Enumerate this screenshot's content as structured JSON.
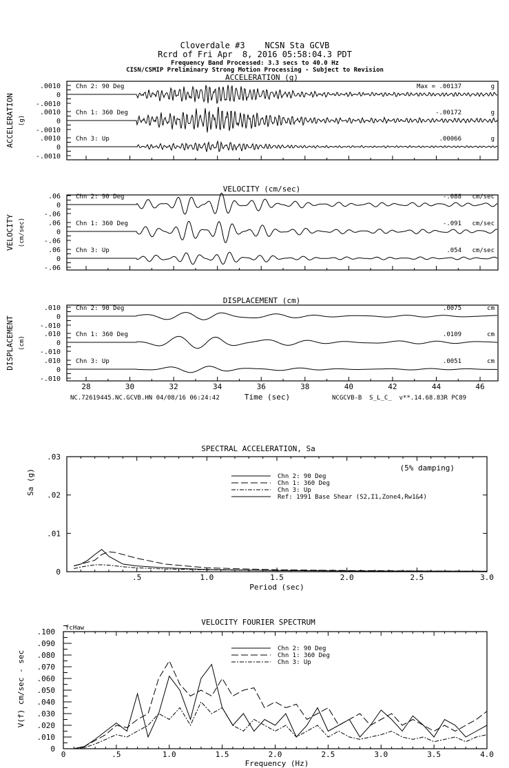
{
  "header": {
    "line1": "Cloverdale #3    NCSN Sta GCVB",
    "line2": "Rcrd of Fri Apr  8, 2016 05:58:04.3 PDT",
    "line3": "Frequency Band Processed: 3.3 secs to 40.0 Hz",
    "line4": "CISN/CSMIP Preliminary Strong Motion Processing - Subject to Revision"
  },
  "footer": {
    "left": "NC.72619445.NC.GCVB.HN 04/08/16 06:24:42",
    "right": "NCGCVB-B  S_L_C_  v**.14.68.83R PC89"
  },
  "chart_data": [
    {
      "type": "line",
      "title": "ACCELERATION (g)",
      "ylabel": "ACCELERATION",
      "yunit": "(g)",
      "xlabel": "Time (sec)",
      "xlim": [
        27.1,
        46.8
      ],
      "xticks": [
        "28",
        "30",
        "32",
        "34",
        "36",
        "38",
        "40",
        "42",
        "44",
        "46"
      ],
      "ytick_top": ".0010",
      "ytick_mid": "0",
      "ytick_bot": "-.0010",
      "ylim": [
        -0.001,
        0.001
      ],
      "series": [
        {
          "name": "Chn 2: 90 Deg",
          "peak_label": "Max = .00137",
          "unit": "g",
          "peak": 0.00137
        },
        {
          "name": "Chn 1: 360 Deg",
          "peak_label": "-.00172",
          "unit": "g",
          "peak": 0.00172
        },
        {
          "name": "Chn 3: Up",
          "peak_label": ".00066",
          "unit": "g",
          "peak": 0.00066
        }
      ],
      "onset_sec": 30.3,
      "peak_sec": 34.2,
      "freq_hz": 5
    },
    {
      "type": "line",
      "title": "VELOCITY (cm/sec)",
      "ylabel": "VELOCITY",
      "yunit": "(cm/sec)",
      "ytick_top": ".06",
      "ytick_mid": "0",
      "ytick_bot": "-.06",
      "ylim": [
        -0.06,
        0.06
      ],
      "series": [
        {
          "name": "Chn 2: 90 Deg",
          "peak_label": "-.088",
          "unit": "cm/sec",
          "peak": 0.088
        },
        {
          "name": "Chn 1: 360 Deg",
          "peak_label": "-.091",
          "unit": "cm/sec",
          "peak": 0.091
        },
        {
          "name": "Chn 3: Up",
          "peak_label": ".054",
          "unit": "cm/sec",
          "peak": 0.054
        }
      ],
      "onset_sec": 30.3,
      "peak_sec": 33.8,
      "freq_hz": 1.5
    },
    {
      "type": "line",
      "title": "DISPLACEMENT (cm)",
      "ylabel": "DISPLACEMENT",
      "yunit": "(cm)",
      "ytick_top": ".010",
      "ytick_mid": "0",
      "ytick_bot": "-.010",
      "ylim": [
        -0.01,
        0.01
      ],
      "series": [
        {
          "name": "Chn 2: 90 Deg",
          "peak_label": ".0075",
          "unit": "cm",
          "peak": 0.0075
        },
        {
          "name": "Chn 1: 360 Deg",
          "peak_label": ".0109",
          "unit": "cm",
          "peak": 0.0109
        },
        {
          "name": "Chn 3: Up",
          "peak_label": ".0051",
          "unit": "cm",
          "peak": 0.0051
        }
      ],
      "onset_sec": 30.3,
      "peak_sec": 34.0,
      "freq_hz": 0.5
    },
    {
      "type": "line",
      "title": "SPECTRAL ACCELERATION, Sa",
      "xlabel": "Period (sec)",
      "ylabel": "Sa (g)",
      "note": "(5% damping)",
      "xlim": [
        0,
        3.0
      ],
      "ylim": [
        0,
        0.03
      ],
      "xticks": [
        ".5",
        "1.0",
        "1.5",
        "2.0",
        "2.5",
        "3.0"
      ],
      "yticks": [
        "0",
        ".01",
        ".02",
        ".03"
      ],
      "x": [
        0.05,
        0.1,
        0.15,
        0.2,
        0.25,
        0.3,
        0.35,
        0.4,
        0.5,
        0.7,
        1.0,
        1.5,
        2.0,
        3.0
      ],
      "series": [
        {
          "name": "Chn 2: 90 Deg",
          "dash": "",
          "values": [
            0.0015,
            0.002,
            0.003,
            0.0045,
            0.0058,
            0.004,
            0.003,
            0.002,
            0.0015,
            0.001,
            0.0006,
            0.0003,
            0.0002,
            0.0001
          ]
        },
        {
          "name": "Chn 1: 360 Deg",
          "dash": "10,4",
          "values": [
            0.0015,
            0.002,
            0.0025,
            0.003,
            0.0045,
            0.0052,
            0.005,
            0.0045,
            0.0035,
            0.002,
            0.001,
            0.0005,
            0.0003,
            0.0001
          ]
        },
        {
          "name": "Chn 3: Up",
          "dash": "6,2,2,2",
          "values": [
            0.0008,
            0.0012,
            0.0015,
            0.0018,
            0.0018,
            0.0017,
            0.0015,
            0.0013,
            0.001,
            0.0007,
            0.0005,
            0.0003,
            0.0002,
            0.0001
          ]
        },
        {
          "name": "Ref: 1991 Base Shear (S2,I1,Zone4,Rw1&4)",
          "dash": "",
          "values": [
            0,
            0,
            0,
            0,
            0,
            0,
            0,
            0,
            0,
            0,
            0,
            0,
            0,
            0
          ]
        }
      ]
    },
    {
      "type": "line",
      "title": "VELOCITY FOURIER SPECTRUM",
      "xlabel": "Frequency (Hz)",
      "ylabel": "V(f)   cm/sec - sec",
      "corner_label": "fcHaw",
      "xlim": [
        0,
        4.0
      ],
      "ylim": [
        0,
        0.1
      ],
      "xticks": [
        "0",
        ".5",
        "1.0",
        "1.5",
        "2.0",
        "2.5",
        "3.0",
        "3.5",
        "4.0"
      ],
      "yticks": [
        "0",
        ".010",
        ".020",
        ".030",
        ".040",
        ".050",
        ".060",
        ".070",
        ".080",
        ".090",
        ".100"
      ],
      "x_step": 0.1,
      "series": [
        {
          "name": "Chn 2: 90 Deg",
          "dash": "",
          "values": [
            0,
            0,
            0.002,
            0.008,
            0.015,
            0.022,
            0.015,
            0.047,
            0.01,
            0.03,
            0.062,
            0.05,
            0.025,
            0.06,
            0.072,
            0.035,
            0.02,
            0.03,
            0.015,
            0.025,
            0.02,
            0.03,
            0.01,
            0.02,
            0.035,
            0.015,
            0.02,
            0.025,
            0.01,
            0.02,
            0.033,
            0.025,
            0.015,
            0.028,
            0.02,
            0.01,
            0.025,
            0.02,
            0.01,
            0.015,
            0.02
          ]
        },
        {
          "name": "Chn 1: 360 Deg",
          "dash": "10,4",
          "values": [
            0,
            0,
            0.002,
            0.007,
            0.012,
            0.02,
            0.018,
            0.025,
            0.03,
            0.06,
            0.075,
            0.055,
            0.045,
            0.05,
            0.045,
            0.06,
            0.045,
            0.05,
            0.052,
            0.035,
            0.04,
            0.035,
            0.038,
            0.025,
            0.03,
            0.035,
            0.02,
            0.025,
            0.03,
            0.02,
            0.025,
            0.03,
            0.02,
            0.025,
            0.02,
            0.015,
            0.02,
            0.015,
            0.02,
            0.025,
            0.032
          ]
        },
        {
          "name": "Chn 3: Up",
          "dash": "6,2,2,2",
          "values": [
            0,
            0,
            0.001,
            0.004,
            0.008,
            0.012,
            0.01,
            0.015,
            0.02,
            0.03,
            0.025,
            0.035,
            0.02,
            0.04,
            0.03,
            0.035,
            0.02,
            0.015,
            0.025,
            0.02,
            0.015,
            0.02,
            0.01,
            0.015,
            0.02,
            0.01,
            0.015,
            0.01,
            0.008,
            0.01,
            0.012,
            0.015,
            0.01,
            0.008,
            0.01,
            0.006,
            0.008,
            0.01,
            0.006,
            0.01,
            0.012
          ]
        }
      ]
    }
  ]
}
